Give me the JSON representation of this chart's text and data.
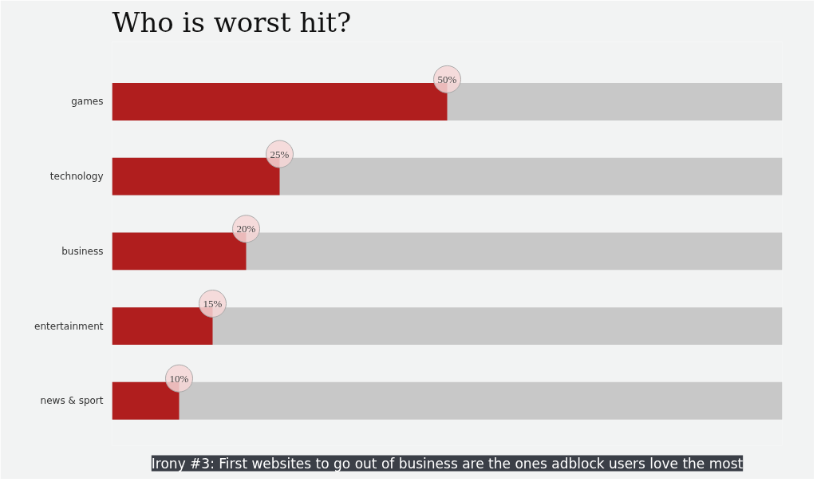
{
  "chart_data": {
    "type": "bar",
    "orientation": "horizontal",
    "title": "Who is worst hit?",
    "categories": [
      "games",
      "technology",
      "business",
      "entertainment",
      "news & sport"
    ],
    "series": [
      {
        "color": "#b01e1e",
        "values": [
          50,
          25,
          20,
          15,
          10
        ],
        "value_labels": [
          "50%",
          "25%",
          "20%",
          "15%",
          "10%"
        ]
      }
    ],
    "xlim": [
      0,
      100
    ],
    "tick_labels": "y",
    "grid": false,
    "annotations": [
      "Irony #3: First websites to go out of business are the ones adblock users love the most"
    ]
  }
}
